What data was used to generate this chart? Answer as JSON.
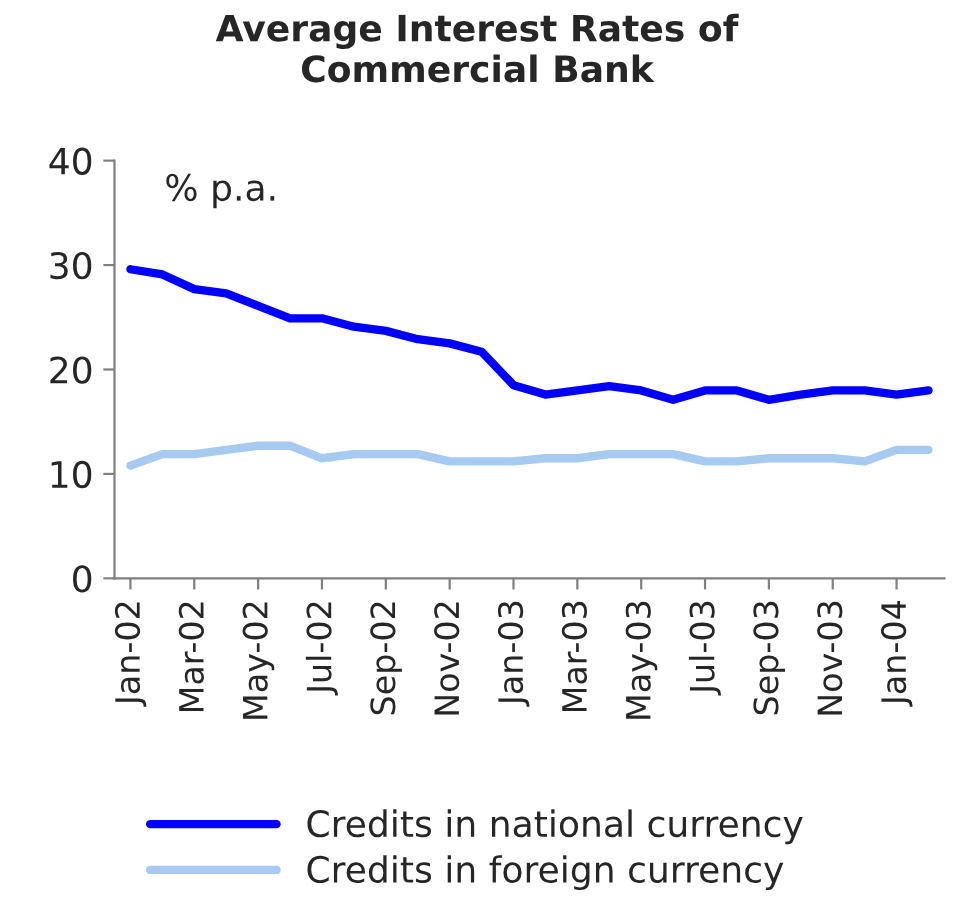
{
  "chart_data": {
    "type": "line",
    "title": "Average Interest Rates of\nCommercial Bank",
    "categories": [
      "Jan-02",
      null,
      "Mar-02",
      null,
      "May-02",
      null,
      "Jul-02",
      null,
      "Sep-02",
      null,
      "Nov-02",
      null,
      "Jan-03",
      null,
      "Mar-03",
      null,
      "May-03",
      null,
      "Jul-03",
      null,
      "Sep-03",
      null,
      "Nov-03",
      null,
      "Jan-04",
      null
    ],
    "series": [
      {
        "name": "Credits in national currency",
        "color": "#0000ff",
        "values": [
          29.6,
          29.1,
          27.7,
          27.3,
          26.1,
          24.9,
          24.9,
          24.1,
          23.7,
          22.9,
          22.5,
          21.7,
          18.5,
          17.6,
          18.0,
          18.4,
          18.0,
          17.1,
          18.0,
          18.0,
          17.1,
          17.6,
          18.0,
          18.0,
          17.6,
          18.0
        ]
      },
      {
        "name": "Credits in foreign currency",
        "color": "#a6caf0",
        "values": [
          10.8,
          11.9,
          11.9,
          12.3,
          12.7,
          12.7,
          11.5,
          11.9,
          11.9,
          11.9,
          11.2,
          11.2,
          11.2,
          11.5,
          11.5,
          11.9,
          11.9,
          11.9,
          11.2,
          11.2,
          11.5,
          11.5,
          11.5,
          11.2,
          12.3,
          12.3
        ]
      }
    ],
    "ylim": [
      0,
      40
    ],
    "yticks": [
      0,
      10,
      20,
      30,
      40
    ],
    "annotations": [
      "% p.a."
    ],
    "legend": "bottom",
    "grid": false
  }
}
